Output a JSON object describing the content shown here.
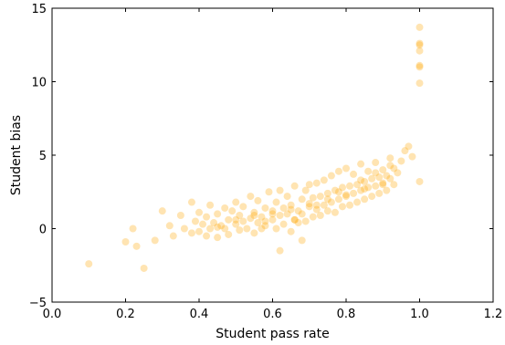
{
  "chart_data": {
    "type": "scatter",
    "title": "",
    "xlabel": "Student pass rate",
    "ylabel": "Student bias",
    "xlim": [
      0.0,
      1.2
    ],
    "ylim": [
      -5,
      15
    ],
    "xticks": [
      0.0,
      0.2,
      0.4,
      0.6,
      0.8,
      1.0,
      1.2
    ],
    "xtick_labels": [
      "0.0",
      "0.2",
      "0.4",
      "0.6",
      "0.8",
      "1.0",
      "1.2"
    ],
    "yticks": [
      -5,
      0,
      5,
      10,
      15
    ],
    "ytick_labels": [
      "−5",
      "0",
      "5",
      "10",
      "15"
    ],
    "grid": false,
    "legend": "none",
    "color": "#ffa500",
    "alpha": 0.3,
    "points": {
      "x": [
        0.1,
        0.2,
        0.22,
        0.23,
        0.25,
        0.28,
        0.3,
        0.32,
        0.33,
        0.35,
        0.36,
        0.38,
        0.38,
        0.39,
        0.4,
        0.4,
        0.41,
        0.42,
        0.42,
        0.43,
        0.43,
        0.44,
        0.45,
        0.45,
        0.46,
        0.47,
        0.47,
        0.48,
        0.48,
        0.49,
        0.5,
        0.5,
        0.51,
        0.51,
        0.52,
        0.52,
        0.53,
        0.54,
        0.54,
        0.55,
        0.55,
        0.56,
        0.56,
        0.57,
        0.57,
        0.58,
        0.58,
        0.59,
        0.6,
        0.6,
        0.61,
        0.61,
        0.62,
        0.62,
        0.63,
        0.63,
        0.64,
        0.64,
        0.65,
        0.65,
        0.66,
        0.66,
        0.67,
        0.67,
        0.68,
        0.68,
        0.69,
        0.69,
        0.7,
        0.7,
        0.71,
        0.71,
        0.72,
        0.72,
        0.73,
        0.73,
        0.74,
        0.74,
        0.75,
        0.75,
        0.76,
        0.76,
        0.77,
        0.77,
        0.78,
        0.78,
        0.79,
        0.79,
        0.8,
        0.8,
        0.81,
        0.81,
        0.82,
        0.82,
        0.83,
        0.83,
        0.84,
        0.84,
        0.85,
        0.85,
        0.86,
        0.86,
        0.87,
        0.87,
        0.88,
        0.88,
        0.89,
        0.89,
        0.9,
        0.9,
        0.91,
        0.91,
        0.92,
        0.92,
        0.93,
        0.93,
        0.94,
        0.95,
        0.96,
        0.97,
        0.98,
        0.5,
        0.55,
        0.6,
        0.65,
        0.7,
        0.75,
        0.8,
        0.85,
        0.9,
        0.45,
        0.58,
        0.66,
        0.72,
        0.78,
        0.84,
        0.88,
        0.92,
        0.62,
        0.68,
        1.0,
        1.0,
        1.0,
        1.0,
        1.0,
        1.0,
        1.0,
        1.0
      ],
      "y": [
        -2.4,
        -0.9,
        0.0,
        -1.2,
        -2.7,
        -0.8,
        1.2,
        0.2,
        -0.5,
        0.9,
        0.0,
        1.8,
        -0.3,
        0.5,
        1.1,
        -0.2,
        0.3,
        0.8,
        -0.5,
        1.6,
        0.0,
        0.4,
        1.0,
        -0.6,
        0.2,
        1.4,
        0.0,
        0.6,
        -0.4,
        1.2,
        0.3,
        1.8,
        -0.1,
        0.9,
        0.5,
        1.5,
        0.0,
        0.7,
        2.2,
        -0.3,
        1.1,
        0.4,
        1.9,
        0.0,
        0.8,
        1.4,
        0.2,
        2.5,
        0.6,
        1.2,
        0.0,
        1.8,
        0.9,
        2.6,
        0.3,
        1.4,
        1.0,
        2.2,
        -0.2,
        1.6,
        0.6,
        2.9,
        1.2,
        0.4,
        2.0,
        1.0,
        2.6,
        0.5,
        1.5,
        3.0,
        0.8,
        2.1,
        1.3,
        3.1,
        0.9,
        2.2,
        1.6,
        3.3,
        1.2,
        2.4,
        1.8,
        3.6,
        1.1,
        2.6,
        2.0,
        3.9,
        1.5,
        2.8,
        2.2,
        4.1,
        1.6,
        2.9,
        2.4,
        3.7,
        1.8,
        3.0,
        2.6,
        4.4,
        2.0,
        3.2,
        2.8,
        3.9,
        2.2,
        3.4,
        2.9,
        4.5,
        2.4,
        3.5,
        3.1,
        4.0,
        2.6,
        3.6,
        3.4,
        4.8,
        3.0,
        4.1,
        3.8,
        4.6,
        5.3,
        5.6,
        4.9,
        0.6,
        0.9,
        1.0,
        1.3,
        1.7,
        2.0,
        2.3,
        2.7,
        3.0,
        0.1,
        0.5,
        0.6,
        1.6,
        2.5,
        3.3,
        3.8,
        4.3,
        -1.5,
        -0.8,
        9.9,
        11.0,
        11.1,
        12.1,
        12.5,
        12.6,
        13.7,
        3.2
      ]
    }
  }
}
